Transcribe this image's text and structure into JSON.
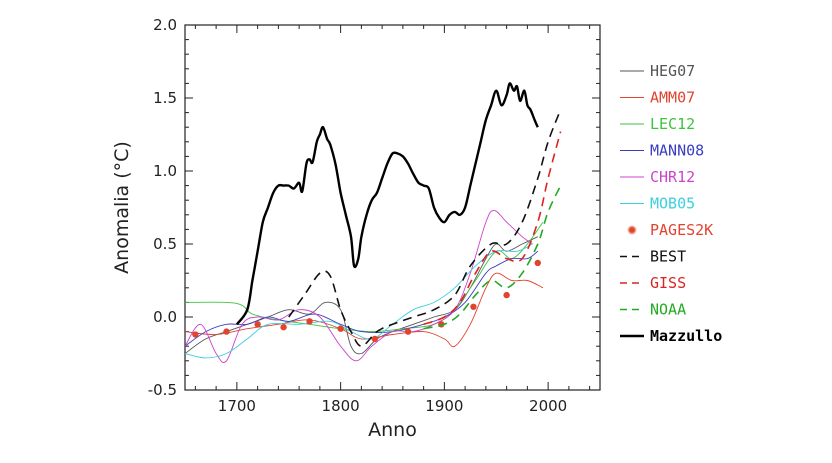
{
  "chart_data": {
    "type": "line",
    "xlabel": "Anno",
    "ylabel": "Anomalia  (°C)",
    "xlim": [
      1650,
      2050
    ],
    "ylim": [
      -0.5,
      2.0
    ],
    "x_ticks": [
      "1700",
      "1800",
      "1900",
      "2000"
    ],
    "y_ticks": [
      "-0.5",
      "0.0",
      "0.5",
      "1.0",
      "1.5",
      "2.0"
    ],
    "x_tick_values": [
      1700,
      1800,
      1900,
      2000
    ],
    "y_tick_values": [
      -0.5,
      0,
      0.5,
      1.0,
      1.5,
      2.0
    ],
    "grid": false,
    "legend_position": "right",
    "series": [
      {
        "name": "HEG07",
        "color": "#555555",
        "style": "solid-thin",
        "points": [
          [
            1650,
            -0.25
          ],
          [
            1670,
            -0.15
          ],
          [
            1690,
            -0.1
          ],
          [
            1710,
            -0.05
          ],
          [
            1730,
            0.0
          ],
          [
            1750,
            0.05
          ],
          [
            1770,
            0.02
          ],
          [
            1785,
            0.1
          ],
          [
            1800,
            0.05
          ],
          [
            1810,
            -0.2
          ],
          [
            1820,
            -0.25
          ],
          [
            1835,
            -0.15
          ],
          [
            1850,
            -0.1
          ],
          [
            1870,
            -0.05
          ],
          [
            1890,
            0.0
          ],
          [
            1910,
            0.05
          ],
          [
            1925,
            0.2
          ],
          [
            1940,
            0.4
          ],
          [
            1950,
            0.5
          ],
          [
            1960,
            0.45
          ],
          [
            1975,
            0.5
          ],
          [
            1990,
            0.55
          ]
        ]
      },
      {
        "name": "AMM07",
        "color": "#e0442f",
        "style": "solid-thin",
        "points": [
          [
            1650,
            -0.1
          ],
          [
            1680,
            -0.12
          ],
          [
            1710,
            -0.08
          ],
          [
            1740,
            -0.05
          ],
          [
            1770,
            -0.02
          ],
          [
            1800,
            -0.08
          ],
          [
            1820,
            -0.15
          ],
          [
            1850,
            -0.12
          ],
          [
            1880,
            -0.1
          ],
          [
            1900,
            -0.15
          ],
          [
            1910,
            -0.2
          ],
          [
            1925,
            -0.05
          ],
          [
            1940,
            0.2
          ],
          [
            1950,
            0.3
          ],
          [
            1965,
            0.25
          ],
          [
            1980,
            0.25
          ],
          [
            1995,
            0.2
          ]
        ]
      },
      {
        "name": "LEC12",
        "color": "#3ec33e",
        "style": "solid-thin",
        "points": [
          [
            1650,
            0.1
          ],
          [
            1690,
            0.1
          ],
          [
            1705,
            0.08
          ],
          [
            1715,
            0.02
          ],
          [
            1740,
            -0.02
          ],
          [
            1770,
            -0.05
          ],
          [
            1800,
            -0.08
          ],
          [
            1830,
            -0.1
          ],
          [
            1860,
            -0.08
          ],
          [
            1890,
            -0.05
          ],
          [
            1910,
            0.05
          ],
          [
            1930,
            0.25
          ],
          [
            1950,
            0.45
          ],
          [
            1965,
            0.4
          ],
          [
            1980,
            0.5
          ],
          [
            1995,
            0.65
          ]
        ]
      },
      {
        "name": "MANN08",
        "color": "#3c3cc4",
        "style": "solid-thin",
        "points": [
          [
            1650,
            -0.2
          ],
          [
            1670,
            -0.1
          ],
          [
            1690,
            -0.05
          ],
          [
            1710,
            -0.05
          ],
          [
            1730,
            0.0
          ],
          [
            1750,
            -0.03
          ],
          [
            1775,
            0.02
          ],
          [
            1800,
            -0.05
          ],
          [
            1820,
            -0.1
          ],
          [
            1850,
            -0.1
          ],
          [
            1880,
            -0.05
          ],
          [
            1900,
            0.0
          ],
          [
            1920,
            0.1
          ],
          [
            1940,
            0.3
          ],
          [
            1950,
            0.35
          ],
          [
            1965,
            0.4
          ],
          [
            1980,
            0.4
          ],
          [
            1990,
            0.45
          ]
        ]
      },
      {
        "name": "CHR12",
        "color": "#cc44cc",
        "style": "solid-thin",
        "points": [
          [
            1650,
            -0.2
          ],
          [
            1665,
            -0.05
          ],
          [
            1680,
            -0.25
          ],
          [
            1690,
            -0.3
          ],
          [
            1705,
            -0.05
          ],
          [
            1720,
            0.0
          ],
          [
            1740,
            -0.02
          ],
          [
            1760,
            0.05
          ],
          [
            1780,
            0.0
          ],
          [
            1800,
            -0.2
          ],
          [
            1815,
            -0.3
          ],
          [
            1830,
            -0.2
          ],
          [
            1850,
            -0.1
          ],
          [
            1870,
            -0.1
          ],
          [
            1890,
            -0.05
          ],
          [
            1910,
            0.05
          ],
          [
            1925,
            0.3
          ],
          [
            1940,
            0.65
          ],
          [
            1948,
            0.73
          ],
          [
            1960,
            0.65
          ],
          [
            1975,
            0.55
          ],
          [
            1985,
            0.5
          ]
        ]
      },
      {
        "name": "MOB05",
        "color": "#3ccfe0",
        "style": "solid-thin",
        "points": [
          [
            1650,
            -0.25
          ],
          [
            1670,
            -0.28
          ],
          [
            1690,
            -0.25
          ],
          [
            1710,
            -0.15
          ],
          [
            1730,
            -0.05
          ],
          [
            1760,
            -0.05
          ],
          [
            1790,
            -0.03
          ],
          [
            1810,
            -0.1
          ],
          [
            1830,
            -0.15
          ],
          [
            1850,
            -0.05
          ],
          [
            1870,
            0.05
          ],
          [
            1890,
            0.1
          ],
          [
            1910,
            0.2
          ],
          [
            1930,
            0.35
          ],
          [
            1950,
            0.45
          ],
          [
            1970,
            0.45
          ],
          [
            1985,
            0.5
          ]
        ]
      },
      {
        "name": "PAGES2K",
        "color": "#e0442f",
        "style": "dots",
        "points": [
          [
            1660,
            -0.12
          ],
          [
            1690,
            -0.1
          ],
          [
            1720,
            -0.05
          ],
          [
            1745,
            -0.07
          ],
          [
            1770,
            -0.03
          ],
          [
            1800,
            -0.08
          ],
          [
            1833,
            -0.15
          ],
          [
            1865,
            -0.1
          ],
          [
            1897,
            -0.05
          ],
          [
            1928,
            0.07
          ],
          [
            1960,
            0.15
          ],
          [
            1990,
            0.37
          ]
        ]
      },
      {
        "name": "BEST",
        "color": "#111111",
        "style": "dashed",
        "points": [
          [
            1750,
            0.0
          ],
          [
            1765,
            0.15
          ],
          [
            1780,
            0.3
          ],
          [
            1790,
            0.28
          ],
          [
            1800,
            0.05
          ],
          [
            1810,
            -0.1
          ],
          [
            1820,
            -0.2
          ],
          [
            1835,
            -0.1
          ],
          [
            1850,
            -0.05
          ],
          [
            1870,
            0.0
          ],
          [
            1890,
            0.05
          ],
          [
            1910,
            0.15
          ],
          [
            1925,
            0.35
          ],
          [
            1945,
            0.5
          ],
          [
            1960,
            0.5
          ],
          [
            1975,
            0.65
          ],
          [
            1990,
            0.95
          ],
          [
            2000,
            1.2
          ],
          [
            2012,
            1.42
          ]
        ]
      },
      {
        "name": "GISS",
        "color": "#dd2222",
        "style": "dashed",
        "points": [
          [
            1880,
            -0.05
          ],
          [
            1900,
            0.0
          ],
          [
            1915,
            0.1
          ],
          [
            1930,
            0.3
          ],
          [
            1945,
            0.45
          ],
          [
            1960,
            0.4
          ],
          [
            1975,
            0.4
          ],
          [
            1990,
            0.65
          ],
          [
            2000,
            0.95
          ],
          [
            2012,
            1.27
          ]
        ]
      },
      {
        "name": "NOAA",
        "color": "#22aa22",
        "style": "dashed",
        "points": [
          [
            1880,
            -0.08
          ],
          [
            1900,
            -0.05
          ],
          [
            1915,
            0.02
          ],
          [
            1930,
            0.15
          ],
          [
            1945,
            0.25
          ],
          [
            1960,
            0.2
          ],
          [
            1975,
            0.3
          ],
          [
            1990,
            0.5
          ],
          [
            2000,
            0.72
          ],
          [
            2012,
            0.9
          ]
        ]
      },
      {
        "name": "Mazzullo",
        "color": "#000000",
        "style": "solid-bold",
        "points": [
          [
            1700,
            -0.05
          ],
          [
            1710,
            0.05
          ],
          [
            1715,
            0.25
          ],
          [
            1720,
            0.45
          ],
          [
            1725,
            0.65
          ],
          [
            1730,
            0.75
          ],
          [
            1735,
            0.85
          ],
          [
            1740,
            0.9
          ],
          [
            1745,
            0.9
          ],
          [
            1750,
            0.9
          ],
          [
            1755,
            0.88
          ],
          [
            1760,
            0.92
          ],
          [
            1763,
            0.86
          ],
          [
            1767,
            1.05
          ],
          [
            1770,
            1.08
          ],
          [
            1773,
            1.06
          ],
          [
            1777,
            1.2
          ],
          [
            1780,
            1.25
          ],
          [
            1783,
            1.3
          ],
          [
            1787,
            1.22
          ],
          [
            1790,
            1.18
          ],
          [
            1795,
            1.05
          ],
          [
            1800,
            0.85
          ],
          [
            1805,
            0.7
          ],
          [
            1810,
            0.55
          ],
          [
            1813,
            0.35
          ],
          [
            1817,
            0.4
          ],
          [
            1820,
            0.55
          ],
          [
            1825,
            0.7
          ],
          [
            1830,
            0.8
          ],
          [
            1835,
            0.85
          ],
          [
            1840,
            0.95
          ],
          [
            1845,
            1.05
          ],
          [
            1850,
            1.12
          ],
          [
            1855,
            1.12
          ],
          [
            1860,
            1.1
          ],
          [
            1865,
            1.05
          ],
          [
            1870,
            0.98
          ],
          [
            1875,
            0.92
          ],
          [
            1880,
            0.9
          ],
          [
            1885,
            0.88
          ],
          [
            1890,
            0.75
          ],
          [
            1895,
            0.68
          ],
          [
            1900,
            0.65
          ],
          [
            1905,
            0.7
          ],
          [
            1910,
            0.72
          ],
          [
            1915,
            0.7
          ],
          [
            1920,
            0.75
          ],
          [
            1925,
            0.9
          ],
          [
            1930,
            1.05
          ],
          [
            1935,
            1.2
          ],
          [
            1940,
            1.35
          ],
          [
            1945,
            1.45
          ],
          [
            1950,
            1.55
          ],
          [
            1955,
            1.45
          ],
          [
            1960,
            1.52
          ],
          [
            1963,
            1.6
          ],
          [
            1967,
            1.55
          ],
          [
            1970,
            1.58
          ],
          [
            1973,
            1.48
          ],
          [
            1977,
            1.55
          ],
          [
            1980,
            1.45
          ],
          [
            1983,
            1.42
          ],
          [
            1987,
            1.35
          ],
          [
            1990,
            1.3
          ]
        ]
      }
    ]
  }
}
